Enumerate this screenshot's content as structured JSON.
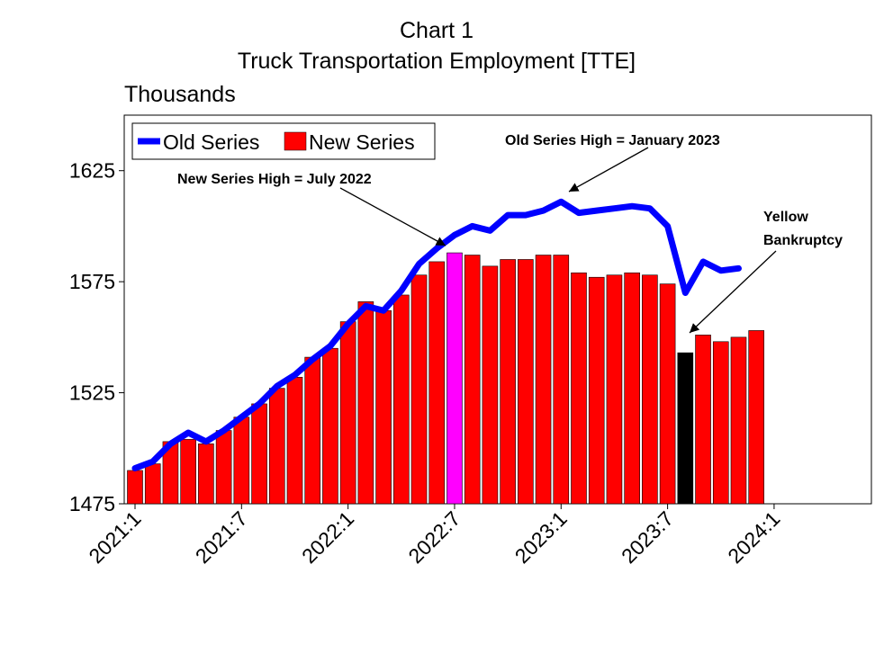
{
  "chart_data": {
    "type": "bar",
    "title": "Chart 1",
    "subtitle": "Truck Transportation Employment [TTE]",
    "y_label": "Thousands",
    "categories": [
      "2021:1",
      null,
      null,
      null,
      null,
      null,
      "2021:7",
      null,
      null,
      null,
      null,
      null,
      "2022:1",
      null,
      null,
      null,
      null,
      null,
      "2022:7",
      null,
      null,
      null,
      null,
      null,
      "2023:1",
      null,
      null,
      null,
      null,
      null,
      "2023:7",
      null,
      null,
      null,
      null,
      null,
      "2024:1"
    ],
    "series": [
      {
        "name": "Old Series",
        "type": "line",
        "color": "#0000ff",
        "values": [
          1491,
          1494,
          1502,
          1507,
          1503,
          1508,
          1514,
          1520,
          1528,
          1533,
          1540,
          1546,
          1556,
          1564,
          1562,
          1571,
          1583,
          1590,
          1596,
          1600,
          1598,
          1605,
          1605,
          1607,
          1611,
          1606,
          1607,
          1608,
          1609,
          1608,
          1600,
          1570,
          1584,
          1580,
          1581,
          null,
          null
        ]
      },
      {
        "name": "New Series",
        "type": "bar",
        "color": "#ff0000",
        "colors": [
          "#ff0000",
          "#ff0000",
          "#ff0000",
          "#ff0000",
          "#ff0000",
          "#ff0000",
          "#ff0000",
          "#ff0000",
          "#ff0000",
          "#ff0000",
          "#ff0000",
          "#ff0000",
          "#ff0000",
          "#ff0000",
          "#ff0000",
          "#ff0000",
          "#ff0000",
          "#ff0000",
          "#ff00ff",
          "#ff0000",
          "#ff0000",
          "#ff0000",
          "#ff0000",
          "#ff0000",
          "#ff0000",
          "#ff0000",
          "#ff0000",
          "#ff0000",
          "#ff0000",
          "#ff0000",
          "#ff0000",
          "#000000",
          "#ff0000",
          "#ff0000",
          "#ff0000",
          "#ff0000",
          "#ff0000"
        ],
        "values": [
          1490,
          1493,
          1503,
          1504,
          1502,
          1508,
          1514,
          1520,
          1527,
          1532,
          1541,
          1545,
          1557,
          1566,
          1562,
          1569,
          1578,
          1584,
          1588,
          1587,
          1582,
          1585,
          1585,
          1587,
          1587,
          1579,
          1577,
          1578,
          1579,
          1578,
          1574,
          1543,
          1551,
          1548,
          1550,
          1553,
          null
        ]
      }
    ],
    "ylim": [
      1475,
      1650
    ],
    "yticks": [
      1475,
      1525,
      1575,
      1625
    ],
    "legend": "top-left",
    "annotations": [
      {
        "lines": [
          "New Series High =  July 2022"
        ]
      },
      {
        "lines": [
          "Old Series High = January 2023"
        ]
      },
      {
        "lines": [
          "Yellow",
          "Bankruptcy"
        ]
      }
    ]
  }
}
